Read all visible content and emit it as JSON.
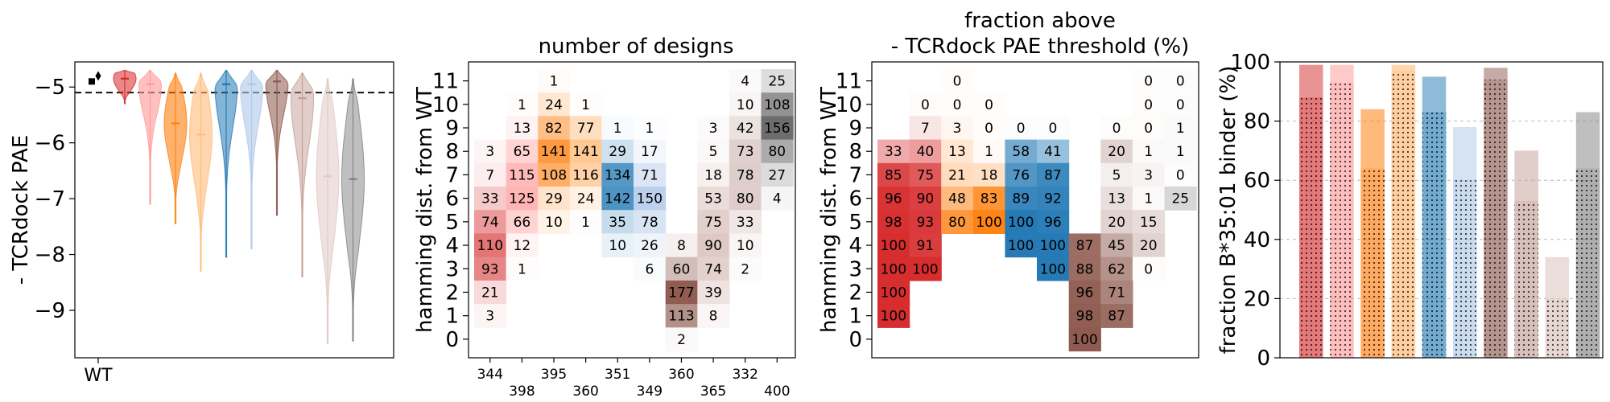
{
  "chart_data": [
    {
      "type": "violin",
      "ylabel": "- TCRdock PAE",
      "xticklabels": [
        "WT"
      ],
      "ylim": [
        -9.85,
        -4.55
      ],
      "yticks": [
        -9,
        -8,
        -7,
        -6,
        -5
      ],
      "threshold_line": -5.1,
      "wt_points": [
        {
          "marker": "square",
          "value": -4.9
        },
        {
          "marker": "diamond",
          "value": -4.8
        }
      ],
      "series": [
        {
          "color": "#d62728",
          "alpha": 0.55,
          "min": -5.3,
          "max": -4.7,
          "median": -4.85
        },
        {
          "color": "#ff9896",
          "alpha": 0.6,
          "min": -7.1,
          "max": -4.7,
          "median": -4.95
        },
        {
          "color": "#ff7f0e",
          "alpha": 0.6,
          "min": -7.45,
          "max": -4.75,
          "median": -5.65
        },
        {
          "color": "#ffbb78",
          "alpha": 0.6,
          "min": -8.3,
          "max": -4.75,
          "median": -5.85
        },
        {
          "color": "#1f77b4",
          "alpha": 0.55,
          "min": -8.05,
          "max": -4.7,
          "median": -4.95
        },
        {
          "color": "#aec7e8",
          "alpha": 0.6,
          "min": -7.9,
          "max": -4.7,
          "median": -4.95
        },
        {
          "color": "#8c564b",
          "alpha": 0.55,
          "min": -7.3,
          "max": -4.7,
          "median": -4.9
        },
        {
          "color": "#c49c94",
          "alpha": 0.5,
          "min": -8.4,
          "max": -4.75,
          "median": -5.2
        },
        {
          "color": "#e0c9c4",
          "alpha": 0.55,
          "min": -9.6,
          "max": -4.85,
          "median": -6.6
        },
        {
          "color": "#7f7f7f",
          "alpha": 0.5,
          "min": -9.55,
          "max": -4.85,
          "median": -6.65
        }
      ]
    },
    {
      "type": "heatmap",
      "title": "number of designs",
      "ylabel": "hamming dist. from WT",
      "yticks": [
        0,
        1,
        2,
        3,
        4,
        5,
        6,
        7,
        8,
        9,
        10,
        11
      ],
      "xticklabels": [
        "344",
        "398",
        "395",
        "360",
        "351",
        "349",
        "360",
        "365",
        "332",
        "400"
      ],
      "rows": [
        {
          "y": 11,
          "cells": [
            null,
            null,
            1,
            null,
            null,
            null,
            null,
            null,
            4,
            25
          ]
        },
        {
          "y": 10,
          "cells": [
            null,
            1,
            24,
            1,
            null,
            null,
            null,
            null,
            10,
            108
          ]
        },
        {
          "y": 9,
          "cells": [
            null,
            13,
            82,
            77,
            1,
            1,
            null,
            3,
            42,
            156
          ]
        },
        {
          "y": 8,
          "cells": [
            3,
            65,
            141,
            141,
            29,
            17,
            null,
            5,
            73,
            80
          ]
        },
        {
          "y": 7,
          "cells": [
            7,
            115,
            108,
            116,
            134,
            71,
            null,
            18,
            78,
            27
          ]
        },
        {
          "y": 6,
          "cells": [
            33,
            125,
            29,
            24,
            142,
            150,
            null,
            53,
            80,
            4
          ]
        },
        {
          "y": 5,
          "cells": [
            74,
            66,
            10,
            1,
            35,
            78,
            null,
            75,
            33,
            null
          ]
        },
        {
          "y": 4,
          "cells": [
            110,
            12,
            null,
            null,
            10,
            26,
            8,
            90,
            10,
            null
          ]
        },
        {
          "y": 3,
          "cells": [
            93,
            1,
            null,
            null,
            null,
            6,
            60,
            74,
            2,
            null
          ]
        },
        {
          "y": 2,
          "cells": [
            21,
            null,
            null,
            null,
            null,
            null,
            177,
            39,
            null,
            null
          ]
        },
        {
          "y": 1,
          "cells": [
            3,
            null,
            null,
            null,
            null,
            null,
            113,
            8,
            null,
            null
          ]
        },
        {
          "y": 0,
          "cells": [
            null,
            null,
            null,
            null,
            null,
            null,
            2,
            null,
            null,
            null
          ]
        }
      ],
      "cmaps": [
        "#d62728",
        "#ff9896",
        "#ff7f0e",
        "#ffbb78",
        "#1f77b4",
        "#aec7e8",
        "#8c564b",
        "#c49c94",
        "#bc9a94",
        "#555555"
      ],
      "vmax": 180
    },
    {
      "type": "heatmap",
      "title": [
        "fraction above",
        "- TCRdock PAE threshold (%)"
      ],
      "ylabel": "hamming dist. from WT",
      "yticks": [
        0,
        1,
        2,
        3,
        4,
        5,
        6,
        7,
        8,
        9,
        10,
        11
      ],
      "rows": [
        {
          "y": 11,
          "cells": [
            null,
            null,
            0,
            null,
            null,
            null,
            null,
            null,
            0,
            0
          ]
        },
        {
          "y": 10,
          "cells": [
            null,
            0,
            0,
            0,
            null,
            null,
            null,
            null,
            0,
            0
          ]
        },
        {
          "y": 9,
          "cells": [
            null,
            7,
            3,
            0,
            0,
            0,
            null,
            0,
            0,
            1
          ]
        },
        {
          "y": 8,
          "cells": [
            33,
            40,
            13,
            1,
            58,
            41,
            null,
            20,
            1,
            1
          ]
        },
        {
          "y": 7,
          "cells": [
            85,
            75,
            21,
            18,
            76,
            87,
            null,
            5,
            3,
            0
          ]
        },
        {
          "y": 6,
          "cells": [
            96,
            90,
            48,
            83,
            89,
            92,
            null,
            13,
            1,
            25
          ]
        },
        {
          "y": 5,
          "cells": [
            98,
            93,
            80,
            100,
            100,
            96,
            null,
            20,
            15,
            null
          ]
        },
        {
          "y": 4,
          "cells": [
            100,
            91,
            null,
            null,
            100,
            100,
            87,
            45,
            20,
            null
          ]
        },
        {
          "y": 3,
          "cells": [
            100,
            100,
            null,
            null,
            null,
            100,
            88,
            62,
            0,
            null
          ]
        },
        {
          "y": 2,
          "cells": [
            100,
            null,
            null,
            null,
            null,
            null,
            96,
            71,
            null,
            null
          ]
        },
        {
          "y": 1,
          "cells": [
            100,
            null,
            null,
            null,
            null,
            null,
            98,
            87,
            null,
            null
          ]
        },
        {
          "y": 0,
          "cells": [
            null,
            null,
            null,
            null,
            null,
            null,
            100,
            null,
            null,
            null
          ]
        }
      ],
      "cmaps": [
        "#d62728",
        "#d62728",
        "#ff7f0e",
        "#ff7f0e",
        "#1f77b4",
        "#1f77b4",
        "#8c564b",
        "#8c564b",
        "#8c564b",
        "#7f7f7f"
      ],
      "vmax": 100
    },
    {
      "type": "bar",
      "ylabel": "fraction B*35:01 binder (%)",
      "ylim": [
        0,
        100
      ],
      "yticks": [
        0,
        20,
        40,
        60,
        80,
        100
      ],
      "grid": true,
      "series": [
        {
          "color": "#d62728",
          "alpha": 0.5,
          "total": 99,
          "dotted": 88
        },
        {
          "color": "#ff9896",
          "alpha": 0.5,
          "total": 99,
          "dotted": 93
        },
        {
          "color": "#ff7f0e",
          "alpha": 0.55,
          "total": 84,
          "dotted": 64
        },
        {
          "color": "#ffbb78",
          "alpha": 0.6,
          "total": 99,
          "dotted": 97
        },
        {
          "color": "#1f77b4",
          "alpha": 0.5,
          "total": 95,
          "dotted": 83
        },
        {
          "color": "#aec7e8",
          "alpha": 0.5,
          "total": 78,
          "dotted": 60
        },
        {
          "color": "#8c564b",
          "alpha": 0.5,
          "total": 98,
          "dotted": 94
        },
        {
          "color": "#c49c94",
          "alpha": 0.5,
          "total": 70,
          "dotted": 53
        },
        {
          "color": "#dcc6c1",
          "alpha": 0.6,
          "total": 34,
          "dotted": 20
        },
        {
          "color": "#7f7f7f",
          "alpha": 0.5,
          "total": 83,
          "dotted": 64
        }
      ]
    }
  ]
}
